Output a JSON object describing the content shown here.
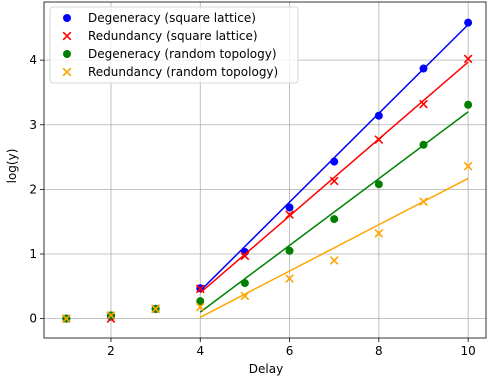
{
  "chart_data": {
    "type": "scatter",
    "xlabel": "Delay",
    "ylabel": "log(y)",
    "xlim": [
      0.5,
      10.4
    ],
    "ylim": [
      -0.3,
      4.9
    ],
    "xticks": [
      2,
      4,
      6,
      8,
      10
    ],
    "yticks": [
      0,
      1,
      2,
      3,
      4
    ],
    "grid": true,
    "legend_position": "top-left",
    "series": [
      {
        "name": "Degeneracy (square lattice)",
        "marker": "circle",
        "color": "#0000ff",
        "x": [
          1,
          2,
          3,
          4,
          5,
          6,
          7,
          8,
          9,
          10
        ],
        "y": [
          0.0,
          0.03,
          0.15,
          0.47,
          1.03,
          1.72,
          2.43,
          3.14,
          3.87,
          4.58
        ],
        "fit": {
          "x": [
            4,
            10
          ],
          "y": [
            0.43,
            4.55
          ]
        }
      },
      {
        "name": "Redundancy (square lattice)",
        "marker": "x",
        "color": "#ff0000",
        "x": [
          1,
          2,
          3,
          4,
          5,
          6,
          7,
          8,
          9,
          10
        ],
        "y": [
          0.0,
          0.0,
          0.15,
          0.46,
          0.97,
          1.61,
          2.13,
          2.77,
          3.32,
          4.02
        ],
        "fit": {
          "x": [
            4,
            10
          ],
          "y": [
            0.4,
            3.97
          ]
        }
      },
      {
        "name": "Degeneracy (random topology)",
        "marker": "circle",
        "color": "#008000",
        "x": [
          1,
          2,
          3,
          4,
          5,
          6,
          7,
          8,
          9,
          10
        ],
        "y": [
          0.0,
          0.05,
          0.15,
          0.27,
          0.55,
          1.05,
          1.54,
          2.08,
          2.69,
          3.31
        ],
        "fit": {
          "x": [
            4,
            10
          ],
          "y": [
            0.1,
            3.2
          ]
        }
      },
      {
        "name": "Redundancy (random topology)",
        "marker": "x",
        "color": "#ffa500",
        "x": [
          1,
          2,
          3,
          4,
          5,
          6,
          7,
          8,
          9,
          10
        ],
        "y": [
          0.0,
          0.05,
          0.15,
          0.18,
          0.35,
          0.62,
          0.9,
          1.32,
          1.81,
          2.36
        ],
        "fit": {
          "x": [
            4,
            10
          ],
          "y": [
            0.02,
            2.17
          ]
        }
      }
    ]
  }
}
